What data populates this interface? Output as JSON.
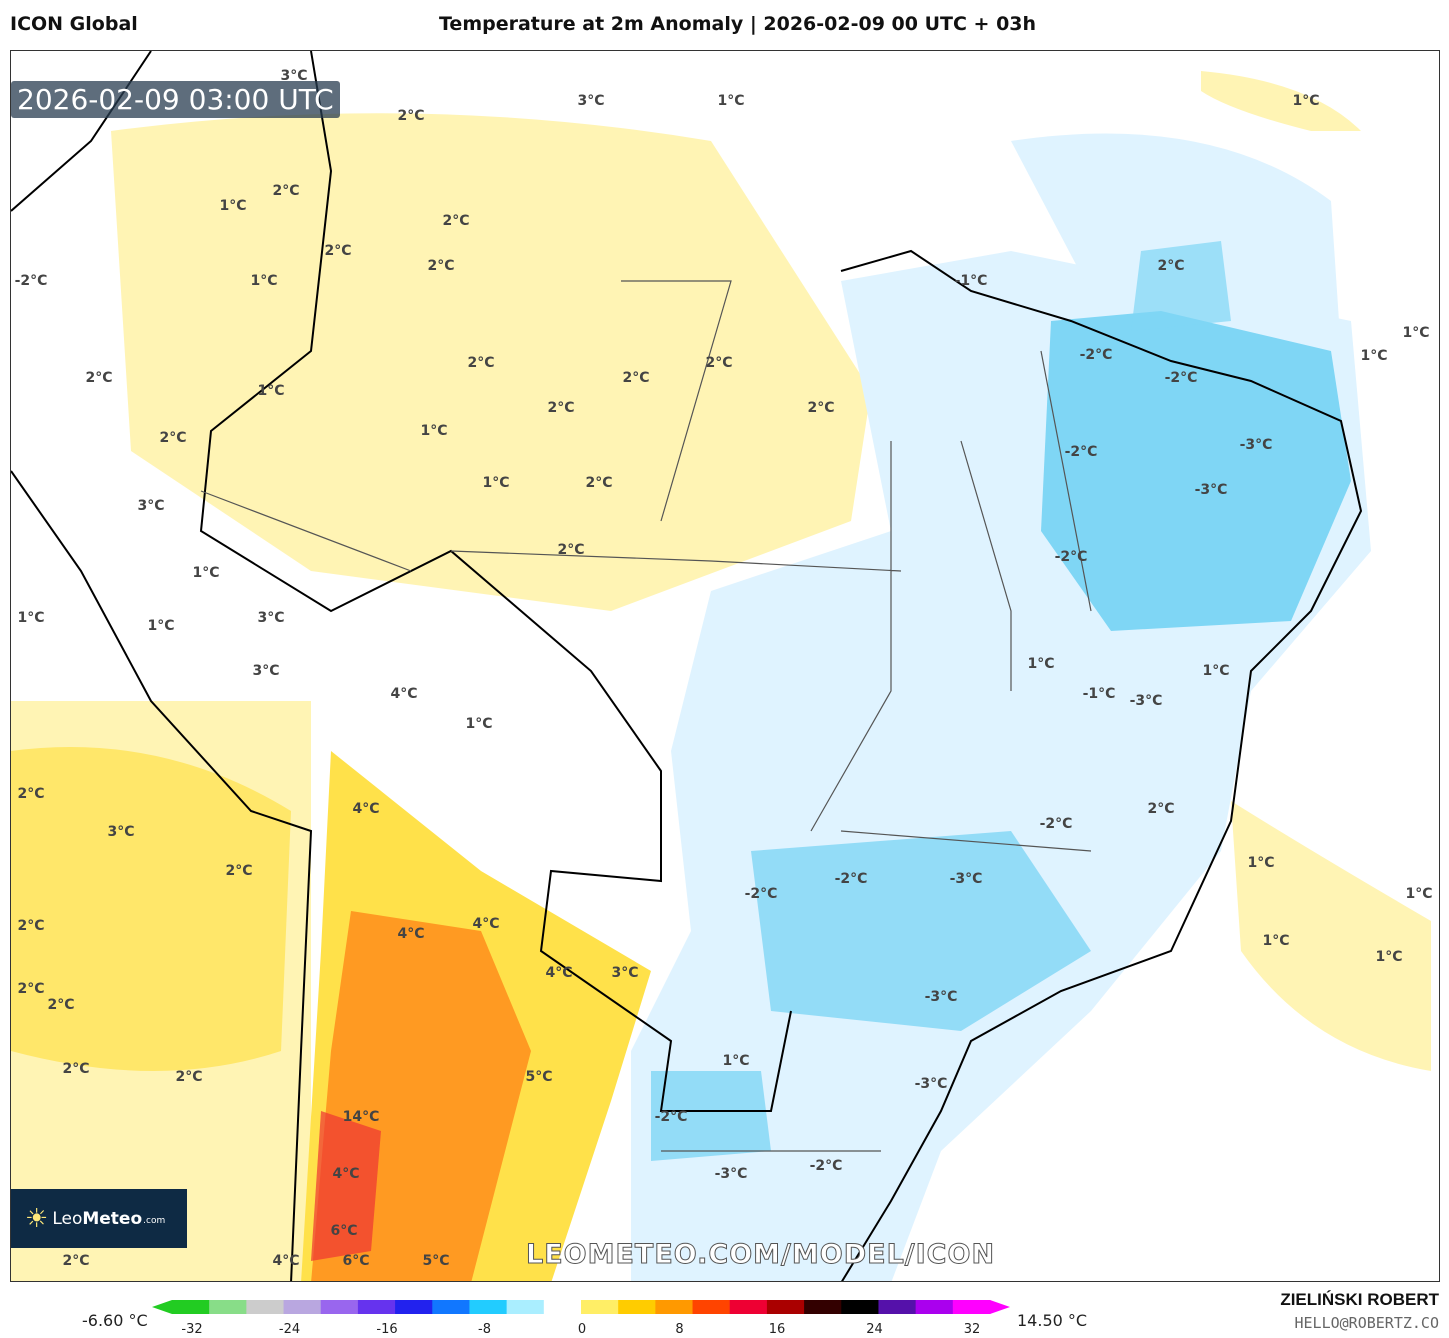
{
  "header": {
    "model": "ICON Global",
    "title": "Temperature at 2m Anomaly | 2026-02-09 00 UTC + 03h"
  },
  "map": {
    "timestamp": "2026-02-09 03:00 UTC",
    "watermark": "LEOMETEO.COM/MODEL/ICON",
    "logo": {
      "name": "LeoMeteo",
      "prefix": "Leo",
      "bold": "Meteo",
      "suffix": ".com"
    },
    "contour_labels": [
      "3°C",
      "2°C",
      "3°C",
      "1°C",
      "1°C",
      "2°C",
      "1°C",
      "2°C",
      "2°C",
      "2°C",
      "2°C",
      "1°C",
      "-1°C",
      "-2°C",
      "1°C",
      "1°C",
      "2°C",
      "1°C",
      "2°C",
      "2°C",
      "2°C",
      "2°C",
      "2°C",
      "-2°C",
      "-2°C",
      "2°C",
      "1°C",
      "-2°C",
      "-3°C",
      "3°C",
      "1°C",
      "2°C",
      "-3°C",
      "2°C",
      "-2°C",
      "1°C",
      "1°C",
      "1°C",
      "3°C",
      "3°C",
      "1°C",
      "-1°C",
      "-3°C",
      "1°C",
      "4°C",
      "1°C",
      "2°C",
      "3°C",
      "4°C",
      "2°C",
      "-2°C",
      "1°C",
      "2°C",
      "-2°C",
      "-2°C",
      "-3°C",
      "1°C",
      "2°C",
      "4°C",
      "4°C",
      "1°C",
      "4°C",
      "3°C",
      "1°C",
      "2°C",
      "2°C",
      "-3°C",
      "1°C",
      "2°C",
      "2°C",
      "-2°C",
      "5°C",
      "-3°C",
      "14°C",
      "-2°C",
      "4°C",
      "-3°C",
      "6°C",
      "6°C",
      "5°C",
      "4°C",
      "2°C"
    ]
  },
  "colorbar": {
    "min_label": "-6.60 °C",
    "max_label": "14.50 °C",
    "ticks": [
      "-32",
      "-24",
      "-16",
      "-8",
      "0",
      "8",
      "16",
      "24",
      "32"
    ],
    "colors": [
      "#22cc22",
      "#88dd88",
      "#cccccc",
      "#b9a7e0",
      "#9966ee",
      "#6633ee",
      "#2222ee",
      "#1177ff",
      "#22ccff",
      "#aaeeff",
      "#ffffff",
      "#ffee66",
      "#ffcc00",
      "#ff9900",
      "#ff4400",
      "#ee0033",
      "#aa0000",
      "#330000",
      "#000000",
      "#5511aa",
      "#aa00ee",
      "#ff00ff"
    ]
  },
  "credits": {
    "author": "ZIELIŃSKI ROBERT",
    "email": "HELLO@ROBERTZ.CO"
  }
}
